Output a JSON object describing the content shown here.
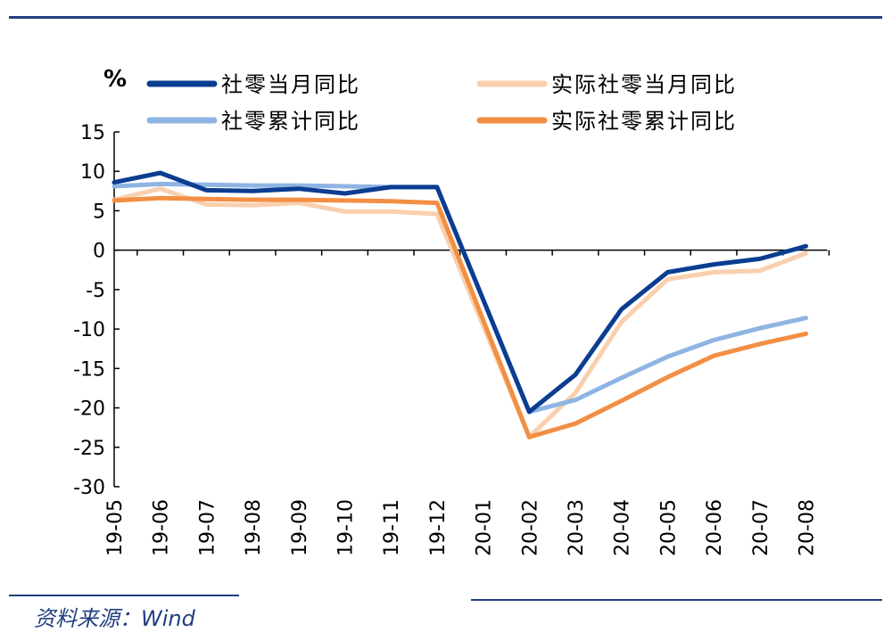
{
  "source": "资料来源：Wind",
  "chart_data": {
    "type": "line",
    "ylabel": "%",
    "ylim": [
      -30,
      15
    ],
    "yticks": [
      15,
      10,
      5,
      0,
      -5,
      -10,
      -15,
      -20,
      -25,
      -30
    ],
    "grid": false,
    "legend_position": "top",
    "categories": [
      "19-05",
      "19-06",
      "19-07",
      "19-08",
      "19-09",
      "19-10",
      "19-11",
      "19-12",
      "20-01",
      "20-02",
      "20-03",
      "20-04",
      "20-05",
      "20-06",
      "20-07",
      "20-08"
    ],
    "series": [
      {
        "name": "社零当月同比",
        "color": "#0b3d91",
        "values": [
          8.6,
          9.8,
          7.6,
          7.5,
          7.8,
          7.2,
          8.0,
          8.0,
          null,
          -20.5,
          -15.8,
          -7.5,
          -2.8,
          -1.8,
          -1.1,
          0.5
        ]
      },
      {
        "name": "实际社零当月同比",
        "color": "#f9cfae",
        "values": [
          6.4,
          7.8,
          5.8,
          5.7,
          6.0,
          4.9,
          4.9,
          4.6,
          null,
          -23.7,
          -18.1,
          -9.1,
          -3.7,
          -2.8,
          -2.6,
          -0.4
        ]
      },
      {
        "name": "社零累计同比",
        "color": "#8eb4e3",
        "values": [
          8.1,
          8.4,
          8.3,
          8.2,
          8.2,
          8.1,
          8.0,
          8.0,
          null,
          -20.5,
          -19.0,
          -16.2,
          -13.5,
          -11.4,
          -9.9,
          -8.6
        ]
      },
      {
        "name": "实际社零累计同比",
        "color": "#f28f44",
        "values": [
          6.3,
          6.6,
          6.5,
          6.4,
          6.4,
          6.3,
          6.2,
          6.0,
          null,
          -23.7,
          -22.0,
          -19.1,
          -16.1,
          -13.4,
          -11.9,
          -10.6
        ]
      }
    ]
  }
}
